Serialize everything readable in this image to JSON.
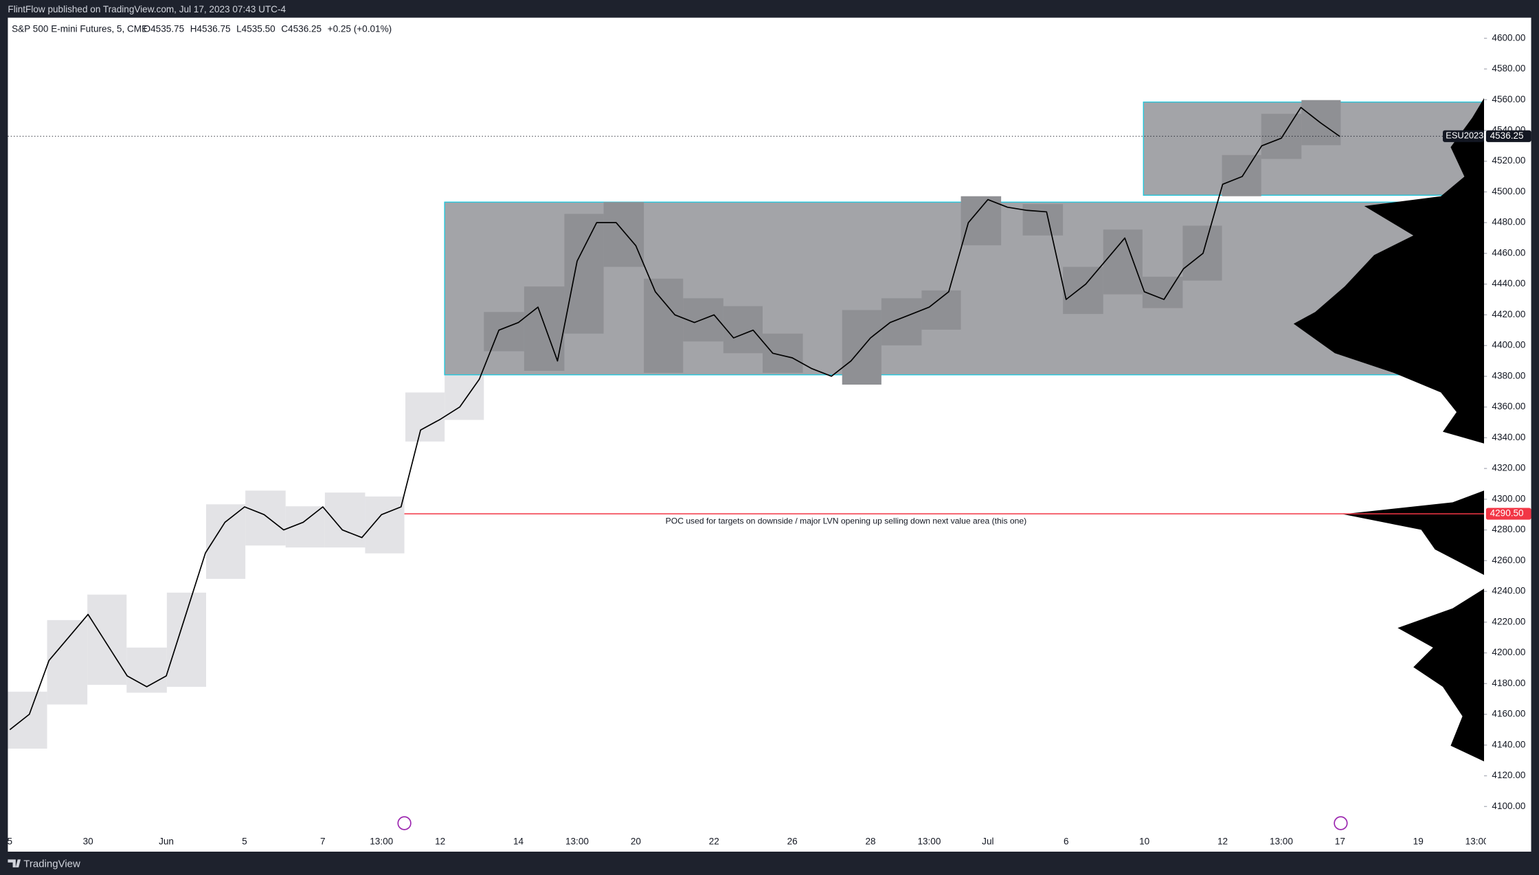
{
  "header": {
    "published": "FlintFlow published on TradingView.com, Jul 17, 2023 07:43 UTC-4"
  },
  "footer": {
    "brand": "TradingView"
  },
  "chart_data": {
    "type": "line",
    "title": "S&P 500 E-mini Futures, 5, CME",
    "legend_stats": [
      "O4535.75",
      "H4536.75",
      "L4535.50",
      "C4536.25",
      "+0.25 (+0.01%)"
    ],
    "categories": [
      "5",
      null,
      null,
      null,
      "30",
      null,
      null,
      null,
      "Jun",
      null,
      null,
      null,
      "5",
      null,
      null,
      null,
      "7",
      null,
      null,
      "13:00",
      null,
      null,
      "12",
      null,
      null,
      null,
      "14",
      null,
      null,
      "13:00",
      null,
      null,
      "20",
      null,
      null,
      null,
      "22",
      null,
      null,
      null,
      "26",
      null,
      null,
      null,
      "28",
      null,
      null,
      "13:00",
      null,
      null,
      "Jul",
      null,
      null,
      null,
      "6",
      null,
      null,
      null,
      "10",
      null,
      null,
      null,
      "12",
      null,
      null,
      "13:00",
      null,
      null,
      "17",
      null,
      null,
      null,
      "19",
      null,
      null,
      "13:00"
    ],
    "values": [
      4150,
      4160,
      4195,
      4210,
      4225,
      4205,
      4185,
      4178,
      4185,
      4225,
      4265,
      4285,
      4295,
      4290,
      4280,
      4285,
      4295,
      4280,
      4275,
      4290,
      4295,
      4345,
      4352,
      4360,
      4378,
      4410,
      4415,
      4425,
      4390,
      4455,
      4480,
      4480,
      4465,
      4435,
      4420,
      4415,
      4420,
      4405,
      4410,
      4395,
      4392,
      4385,
      4380,
      4390,
      4405,
      4415,
      4420,
      4425,
      4435,
      4480,
      4495,
      4490,
      4488,
      4487,
      4430,
      4440,
      4455,
      4470,
      4435,
      4430,
      4450,
      4460,
      4505,
      4510,
      4530,
      4535,
      4555,
      4545,
      4536,
      null,
      null,
      null,
      null,
      null,
      null,
      null
    ],
    "color": "#000000",
    "ylim": [
      4083.4,
      4613.4
    ],
    "yticks": [
      {
        "value": 4100,
        "label": "4100.00"
      },
      {
        "value": 4120,
        "label": "4120.00"
      },
      {
        "value": 4140,
        "label": "4140.00"
      },
      {
        "value": 4160,
        "label": "4160.00"
      },
      {
        "value": 4180,
        "label": "4180.00"
      },
      {
        "value": 4200,
        "label": "4200.00"
      },
      {
        "value": 4220,
        "label": "4220.00"
      },
      {
        "value": 4240,
        "label": "4240.00"
      },
      {
        "value": 4260,
        "label": "4260.00"
      },
      {
        "value": 4280,
        "label": "4280.00"
      },
      {
        "value": 4300,
        "label": "4300.00"
      },
      {
        "value": 4320,
        "label": "4320.00"
      },
      {
        "value": 4340,
        "label": "4340.00"
      },
      {
        "value": 4360,
        "label": "4360.00"
      },
      {
        "value": 4380,
        "label": "4380.00"
      },
      {
        "value": 4400,
        "label": "4400.00"
      },
      {
        "value": 4420,
        "label": "4420.00"
      },
      {
        "value": 4440,
        "label": "4440.00"
      },
      {
        "value": 4460,
        "label": "4460.00"
      },
      {
        "value": 4480,
        "label": "4480.00"
      },
      {
        "value": 4500,
        "label": "4500.00"
      },
      {
        "value": 4520,
        "label": "4520.00"
      },
      {
        "value": 4540,
        "label": "4540.00"
      },
      {
        "value": 4560,
        "label": "4560.00"
      },
      {
        "value": 4580,
        "label": "4580.00"
      },
      {
        "value": 4600,
        "label": "4600.00"
      }
    ],
    "grid": false,
    "symbol": "ESU2023",
    "last_price": {
      "value": 4536.25,
      "label": "4536.25"
    },
    "poc": {
      "value": 4290.5,
      "label": "4290.50",
      "color": "#f23645"
    },
    "annotation": "POC used for targets on downside / major LVN opening up selling down next value area (this one)"
  }
}
